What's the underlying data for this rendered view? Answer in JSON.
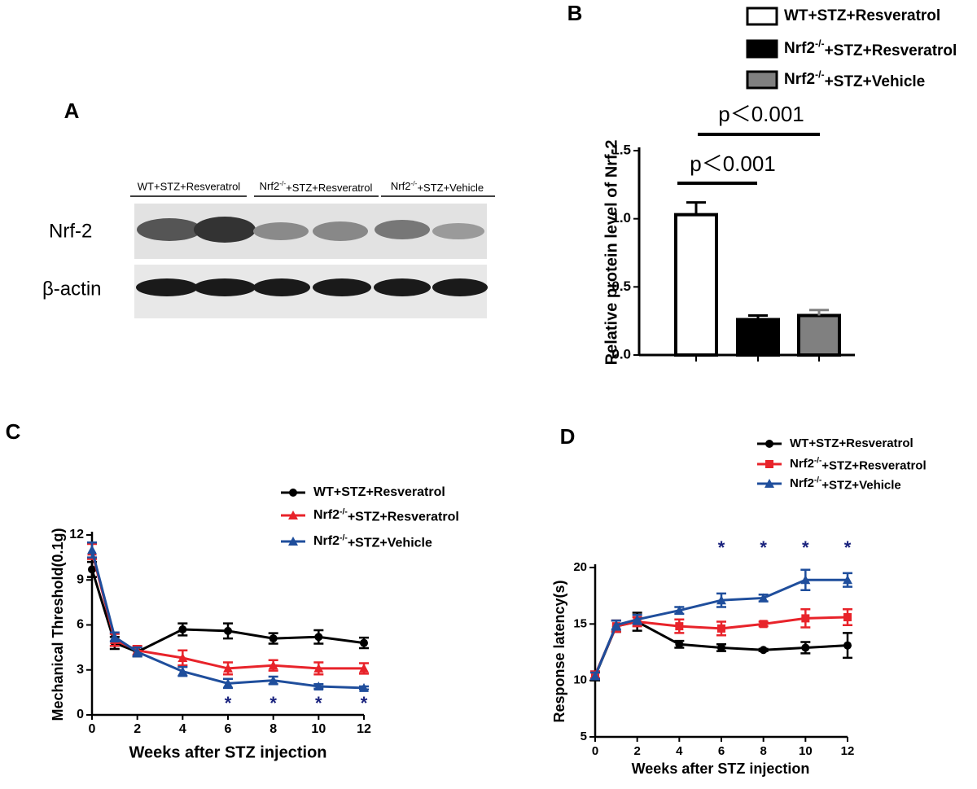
{
  "blot": {
    "panel_label": "A",
    "lanes": [
      "WT+STZ+Resveratrol",
      "Nrf2-/-+STZ+Resveratrol",
      "Nrf2-/-+STZ+Vehicle"
    ],
    "rows": [
      "Nrf-2",
      "β-actin"
    ]
  },
  "chart_data": [
    {
      "type": "bar",
      "panel_label": "B",
      "ylabel": "Relative protein level of Nrf-2",
      "ylim": [
        0,
        1.5
      ],
      "yticks": [
        {
          "value": 0,
          "label": "0.0"
        },
        0.5,
        {
          "value": 1,
          "label": "1.0"
        },
        1.5
      ],
      "series": [
        {
          "name": "WT+STZ+Resveratrol",
          "color": "#ffffff",
          "values": [
            1.03
          ],
          "errors": [
            0.09
          ]
        },
        {
          "name": "Nrf2-/-+STZ+Resveratrol",
          "color": "#000000",
          "values": [
            0.26
          ],
          "errors": [
            0.03
          ]
        },
        {
          "name": "Nrf2-/-+STZ+Vehicle",
          "color": "#808080",
          "values": [
            0.29
          ],
          "errors": [
            0.04
          ]
        }
      ],
      "annotations": [
        "p＜0.001",
        "p＜0.001"
      ]
    },
    {
      "type": "line",
      "panel_label": "C",
      "ylabel": "Mechanical Threshold(0.1g)",
      "xlabel": "Weeks after STZ injection",
      "x": [
        0,
        1,
        2,
        4,
        6,
        8,
        10,
        12
      ],
      "xlim": [
        0,
        12
      ],
      "xticks": [
        0,
        2,
        4,
        6,
        8,
        10,
        12
      ],
      "ylim": [
        0,
        12
      ],
      "yticks": [
        0,
        3,
        6,
        9,
        12
      ],
      "series": [
        {
          "name": "WT+STZ+Resveratrol",
          "color": "#000000",
          "marker": "circle",
          "values": [
            9.7,
            4.8,
            4.2,
            5.7,
            5.6,
            5.1,
            5.2,
            4.8
          ],
          "errors": [
            0.5,
            0.4,
            0.3,
            0.4,
            0.5,
            0.35,
            0.45,
            0.35
          ]
        },
        {
          "name": "Nrf2-/-+STZ+Resveratrol",
          "color": "#e8232a",
          "marker": "triangle",
          "values": [
            10.9,
            5.0,
            4.3,
            3.8,
            3.1,
            3.3,
            3.1,
            3.1
          ],
          "errors": [
            0.5,
            0.4,
            0.3,
            0.5,
            0.4,
            0.35,
            0.4,
            0.35
          ]
        },
        {
          "name": "Nrf2-/-+STZ+Vehicle",
          "color": "#1f4e9c",
          "marker": "triangle",
          "values": [
            11.0,
            5.2,
            4.2,
            2.9,
            2.1,
            2.3,
            1.9,
            1.8
          ],
          "errors": [
            0.5,
            0.3,
            0.3,
            0.3,
            0.3,
            0.25,
            0.15,
            0.1
          ]
        }
      ],
      "annotations": [
        {
          "x": 6,
          "text": "*"
        },
        {
          "x": 8,
          "text": "*"
        },
        {
          "x": 10,
          "text": "*"
        },
        {
          "x": 12,
          "text": "*"
        }
      ]
    },
    {
      "type": "line",
      "panel_label": "D",
      "ylabel": "Response latency(s)",
      "xlabel": "Weeks after STZ injection",
      "x": [
        0,
        1,
        2,
        4,
        6,
        8,
        10,
        12
      ],
      "xlim": [
        0,
        12
      ],
      "xticks": [
        0,
        2,
        4,
        6,
        8,
        10,
        12
      ],
      "ylim": [
        5,
        20
      ],
      "yticks": [
        5,
        10,
        15,
        20
      ],
      "series": [
        {
          "name": "WT+STZ+Resveratrol",
          "color": "#000000",
          "marker": "circle",
          "values": [
            10.4,
            14.8,
            15.2,
            13.2,
            12.9,
            12.7,
            12.9,
            13.1
          ],
          "errors": [
            0.4,
            0.5,
            0.8,
            0.3,
            0.3,
            0.1,
            0.5,
            1.1
          ]
        },
        {
          "name": "Nrf2-/-+STZ+Resveratrol",
          "color": "#e8232a",
          "marker": "square",
          "values": [
            10.5,
            14.8,
            15.2,
            14.8,
            14.6,
            15.0,
            15.5,
            15.6
          ],
          "errors": [
            0.3,
            0.5,
            0.4,
            0.6,
            0.6,
            0.2,
            0.8,
            0.7
          ]
        },
        {
          "name": "Nrf2-/-+STZ+Vehicle",
          "color": "#1f4e9c",
          "marker": "triangle",
          "values": [
            10.4,
            14.9,
            15.4,
            16.2,
            17.1,
            17.3,
            18.9,
            18.9
          ],
          "errors": [
            0.3,
            0.4,
            0.4,
            0.3,
            0.6,
            0.3,
            0.9,
            0.6
          ]
        }
      ],
      "annotations": [
        {
          "x": 6,
          "text": "*"
        },
        {
          "x": 8,
          "text": "*"
        },
        {
          "x": 10,
          "text": "*"
        },
        {
          "x": 12,
          "text": "*"
        }
      ]
    }
  ]
}
